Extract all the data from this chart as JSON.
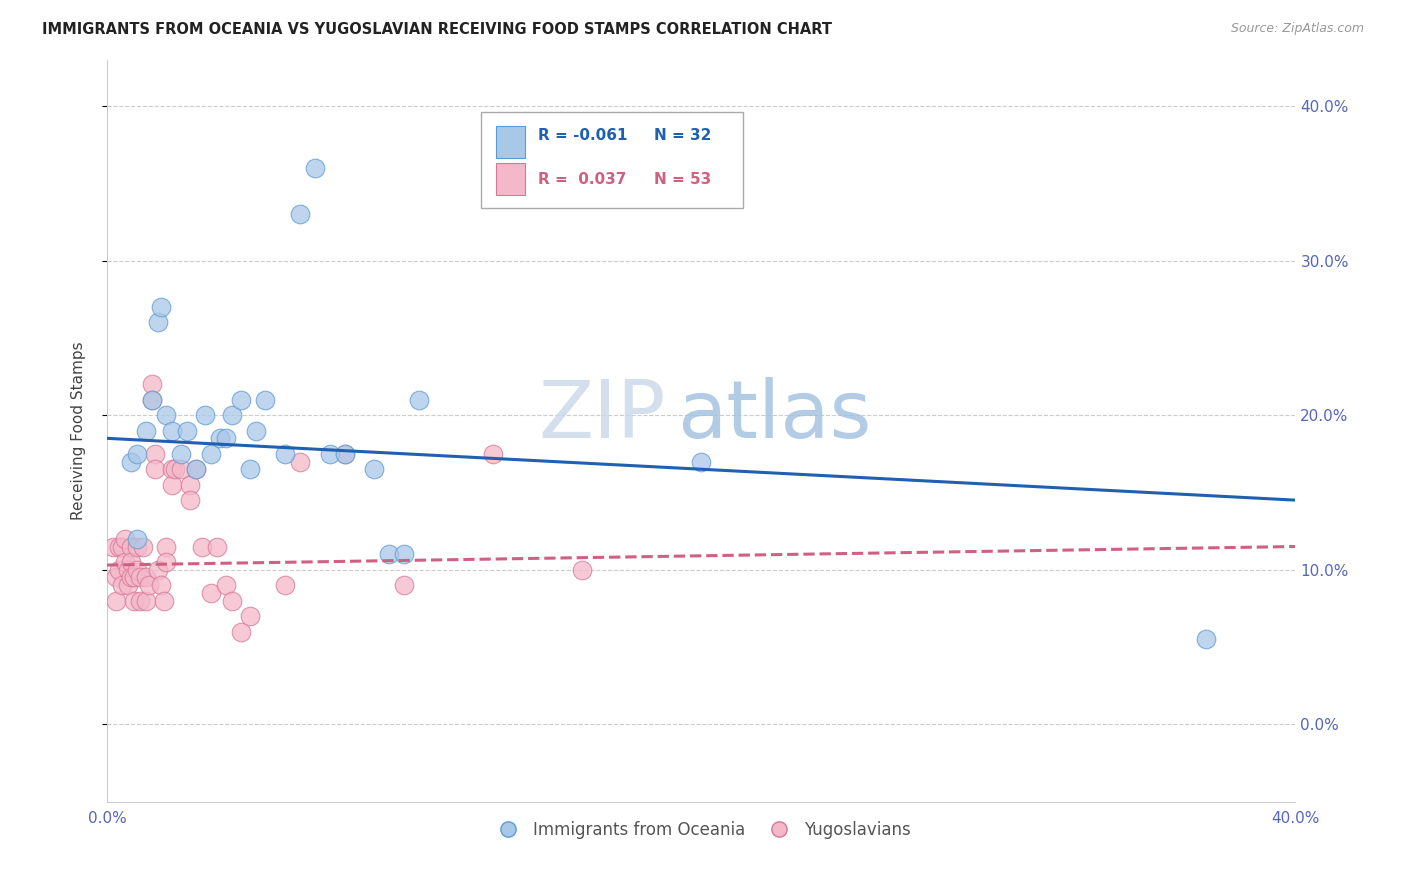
{
  "title": "IMMIGRANTS FROM OCEANIA VS YUGOSLAVIAN RECEIVING FOOD STAMPS CORRELATION CHART",
  "source": "Source: ZipAtlas.com",
  "ylabel": "Receiving Food Stamps",
  "legend_label1": "Immigrants from Oceania",
  "legend_label2": "Yugoslavians",
  "legend_r1": "R = -0.061",
  "legend_n1": "N = 32",
  "legend_r2": "R =  0.037",
  "legend_n2": "N = 53",
  "xmin": 0.0,
  "xmax": 0.4,
  "ymin": -0.05,
  "ymax": 0.43,
  "blue_color": "#a8c8e8",
  "blue_edge": "#5b9bd5",
  "pink_color": "#f4b8c8",
  "pink_edge": "#d4789a",
  "trend_blue": "#2060b0",
  "trend_pink": "#d06080",
  "watermark_color": "#dde8f5",
  "blue_dots_x": [
    0.008,
    0.01,
    0.01,
    0.013,
    0.015,
    0.017,
    0.018,
    0.02,
    0.022,
    0.025,
    0.027,
    0.03,
    0.033,
    0.035,
    0.038,
    0.04,
    0.042,
    0.045,
    0.048,
    0.05,
    0.053,
    0.06,
    0.065,
    0.07,
    0.075,
    0.08,
    0.09,
    0.095,
    0.1,
    0.105,
    0.2,
    0.37
  ],
  "blue_dots_y": [
    0.17,
    0.175,
    0.12,
    0.19,
    0.21,
    0.26,
    0.27,
    0.2,
    0.19,
    0.175,
    0.19,
    0.165,
    0.2,
    0.175,
    0.185,
    0.185,
    0.2,
    0.21,
    0.165,
    0.19,
    0.21,
    0.175,
    0.33,
    0.36,
    0.175,
    0.175,
    0.165,
    0.11,
    0.11,
    0.21,
    0.17,
    0.055
  ],
  "pink_dots_x": [
    0.002,
    0.003,
    0.003,
    0.004,
    0.004,
    0.005,
    0.005,
    0.006,
    0.006,
    0.007,
    0.007,
    0.008,
    0.008,
    0.008,
    0.009,
    0.009,
    0.01,
    0.01,
    0.011,
    0.011,
    0.012,
    0.013,
    0.013,
    0.014,
    0.015,
    0.015,
    0.016,
    0.016,
    0.017,
    0.018,
    0.019,
    0.02,
    0.02,
    0.022,
    0.022,
    0.023,
    0.025,
    0.028,
    0.028,
    0.03,
    0.032,
    0.035,
    0.037,
    0.04,
    0.042,
    0.045,
    0.048,
    0.06,
    0.065,
    0.08,
    0.1,
    0.13,
    0.16
  ],
  "pink_dots_y": [
    0.115,
    0.095,
    0.08,
    0.115,
    0.1,
    0.115,
    0.09,
    0.12,
    0.105,
    0.1,
    0.09,
    0.115,
    0.105,
    0.095,
    0.095,
    0.08,
    0.115,
    0.1,
    0.095,
    0.08,
    0.115,
    0.095,
    0.08,
    0.09,
    0.22,
    0.21,
    0.175,
    0.165,
    0.1,
    0.09,
    0.08,
    0.115,
    0.105,
    0.165,
    0.155,
    0.165,
    0.165,
    0.155,
    0.145,
    0.165,
    0.115,
    0.085,
    0.115,
    0.09,
    0.08,
    0.06,
    0.07,
    0.09,
    0.17,
    0.175,
    0.09,
    0.175,
    0.1
  ],
  "blue_trend_x0": 0.0,
  "blue_trend_x1": 0.4,
  "blue_trend_y0": 0.185,
  "blue_trend_y1": 0.145,
  "pink_trend_x0": 0.0,
  "pink_trend_x1": 0.4,
  "pink_trend_y0": 0.103,
  "pink_trend_y1": 0.115
}
